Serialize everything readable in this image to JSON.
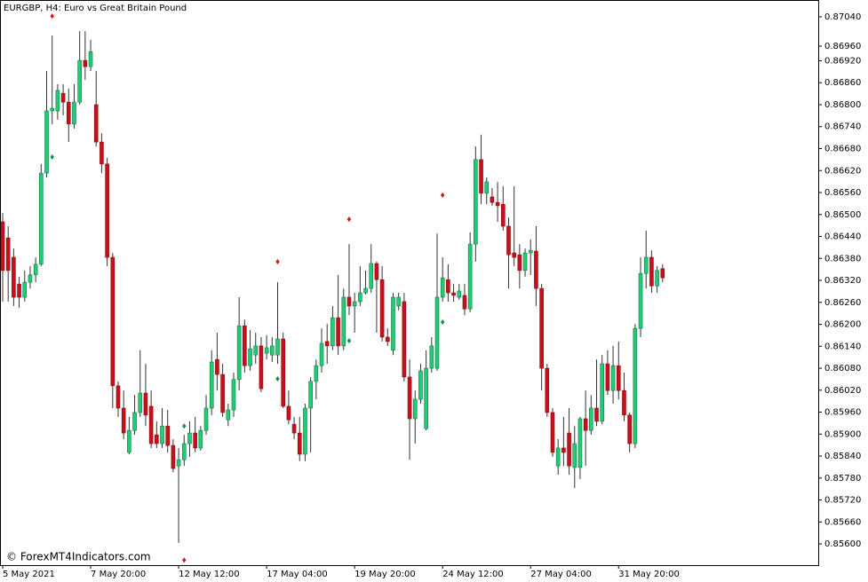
{
  "chart_data": {
    "type": "candlestick",
    "title": "EURGBP, H4:  Euro vs Great Britain Pound",
    "watermark": "© ForexMT4Indicators.com",
    "categories": [
      "5 May 2021",
      null,
      null,
      null,
      null,
      null,
      null,
      null,
      null,
      null,
      null,
      null,
      null,
      null,
      null,
      null,
      "7 May 20:00",
      null,
      null,
      null,
      null,
      null,
      null,
      null,
      null,
      null,
      null,
      null,
      null,
      null,
      null,
      null,
      "12 May 12:00",
      null,
      null,
      null,
      null,
      null,
      null,
      null,
      null,
      null,
      null,
      null,
      null,
      null,
      null,
      null,
      "17 May 04:00",
      null,
      null,
      null,
      null,
      null,
      null,
      null,
      null,
      null,
      null,
      null,
      null,
      null,
      null,
      null,
      "19 May 20:00",
      null,
      null,
      null,
      null,
      null,
      null,
      null,
      null,
      null,
      null,
      null,
      null,
      null,
      null,
      null,
      "24 May 12:00",
      null,
      null,
      null,
      null,
      null,
      null,
      null,
      null,
      null,
      null,
      null,
      null,
      null,
      null,
      null,
      "27 May 04:00",
      null,
      null,
      null,
      null,
      null,
      null,
      null,
      null,
      null,
      null,
      null,
      null,
      null,
      null,
      null,
      "31 May 20:00",
      null,
      null,
      null,
      null,
      null,
      null,
      null,
      null
    ],
    "open": [
      0.8648,
      0.86436,
      0.86383,
      0.8631,
      0.86274,
      0.86315,
      0.86335,
      0.86364,
      0.86613,
      0.86783,
      0.86783,
      0.86831,
      0.86807,
      0.86747,
      0.86807,
      0.86921,
      0.86904,
      0.868,
      0.86698,
      0.86638,
      0.86383,
      0.86032,
      0.85971,
      0.8585,
      0.8591,
      0.85959,
      0.86012,
      0.85976,
      0.85898,
      0.85874,
      0.85922,
      0.85869,
      0.85813,
      0.8583,
      0.85874,
      0.85903,
      0.85862,
      0.8591,
      0.85971,
      0.86104,
      0.86063,
      0.85939,
      0.85966,
      0.86049,
      0.86196,
      0.86087,
      0.86116,
      0.86141,
      0.86121,
      0.86116,
      0.86116,
      0.8616,
      0.85976,
      0.85927,
      0.85903,
      0.85845,
      0.85971,
      0.86044,
      0.86087,
      0.86153,
      0.86141,
      0.86218,
      0.86141,
      0.86274,
      0.8625,
      0.86262,
      0.86286,
      0.86298,
      0.86366,
      0.86322,
      0.86165,
      0.86129,
      0.8625,
      0.86262,
      0.86056,
      0.85942,
      0.85995,
      0.85915,
      0.8608,
      0.8608,
      0.86274,
      0.86322,
      0.86286,
      0.86274,
      0.86279,
      0.86242,
      0.86419,
      0.8665,
      0.86558,
      0.86548,
      0.86533,
      0.86528,
      0.86468,
      0.86395,
      0.8639,
      0.86347,
      0.86395,
      0.864,
      0.86298,
      0.8608,
      0.85959,
      0.85813,
      0.85862,
      0.85903,
      0.85809,
      0.85809,
      0.85942,
      0.8591,
      0.85971,
      0.85935,
      0.86092,
      0.86019,
      0.86087,
      0.86019,
      0.85952,
      0.85874,
      0.86189,
      0.86339,
      0.86383,
      0.86305,
      0.86352
    ],
    "high": [
      0.86504,
      0.86468,
      0.86407,
      0.8633,
      0.86347,
      0.86359,
      0.86383,
      0.86638,
      0.86892,
      0.86989,
      0.86856,
      0.86856,
      0.86844,
      0.86856,
      0.87001,
      0.87001,
      0.86977,
      0.86892,
      0.86722,
      0.86655,
      0.86395,
      0.86044,
      0.86019,
      0.85947,
      0.86007,
      0.86129,
      0.86092,
      0.86019,
      0.85935,
      0.85971,
      0.85966,
      0.85886,
      0.85862,
      0.85898,
      0.85935,
      0.85947,
      0.85922,
      0.86007,
      0.86129,
      0.86177,
      0.86092,
      0.85983,
      0.86068,
      0.86274,
      0.86213,
      0.86184,
      0.86177,
      0.86165,
      0.8617,
      0.86165,
      0.86315,
      0.86177,
      0.86019,
      0.85947,
      0.85947,
      0.85983,
      0.86056,
      0.86104,
      0.86189,
      0.86201,
      0.8625,
      0.86335,
      0.86298,
      0.86419,
      0.86286,
      0.86359,
      0.86347,
      0.86419,
      0.86371,
      0.86359,
      0.86189,
      0.86286,
      0.86286,
      0.86286,
      0.86104,
      0.86019,
      0.86092,
      0.86129,
      0.86165,
      0.86448,
      0.86383,
      0.86364,
      0.8631,
      0.8631,
      0.8631,
      0.86451,
      0.86686,
      0.86718,
      0.86601,
      0.86572,
      0.86589,
      0.86577,
      0.86492,
      0.86577,
      0.86419,
      0.86407,
      0.86432,
      0.86468,
      0.8631,
      0.86092,
      0.85971,
      0.85886,
      0.85947,
      0.85971,
      0.85922,
      0.85947,
      0.86019,
      0.86007,
      0.86104,
      0.86116,
      0.86129,
      0.86141,
      0.86153,
      0.86068,
      0.85959,
      0.86201,
      0.86383,
      0.86456,
      0.86402,
      0.86359,
      0.86364
    ],
    "low": [
      0.86262,
      0.86262,
      0.8625,
      0.86245,
      0.86262,
      0.86298,
      0.86315,
      0.86359,
      0.86601,
      0.86747,
      0.86759,
      0.86771,
      0.86698,
      0.86735,
      0.868,
      0.86868,
      0.86892,
      0.86686,
      0.86613,
      0.86359,
      0.85971,
      0.85947,
      0.85886,
      0.85845,
      0.85898,
      0.85947,
      0.85922,
      0.85862,
      0.85862,
      0.85862,
      0.8585,
      0.85796,
      0.85603,
      0.85813,
      0.85838,
      0.8585,
      0.85855,
      0.85898,
      0.85952,
      0.86019,
      0.85947,
      0.85922,
      0.85947,
      0.86019,
      0.86068,
      0.86073,
      0.86092,
      0.86015,
      0.86104,
      0.86097,
      0.86092,
      0.85971,
      0.85927,
      0.85886,
      0.85826,
      0.85826,
      0.8585,
      0.85995,
      0.86068,
      0.86092,
      0.86129,
      0.86116,
      0.86129,
      0.86225,
      0.86177,
      0.8625,
      0.86281,
      0.86286,
      0.86177,
      0.86153,
      0.86141,
      0.86116,
      0.86238,
      0.86044,
      0.8583,
      0.85874,
      0.85983,
      0.8591,
      0.86068,
      0.86073,
      0.86262,
      0.86262,
      0.86262,
      0.86267,
      0.86225,
      0.86233,
      0.86371,
      0.86528,
      0.86528,
      0.86524,
      0.8648,
      0.86456,
      0.86298,
      0.86359,
      0.86298,
      0.8633,
      0.86335,
      0.8625,
      0.86019,
      0.85947,
      0.85838,
      0.85789,
      0.85813,
      0.85789,
      0.85753,
      0.85777,
      0.85813,
      0.85898,
      0.85922,
      0.85927,
      0.86007,
      0.85983,
      0.85995,
      0.85935,
      0.8585,
      0.85862,
      0.86165,
      0.86298,
      0.86286,
      0.86286,
      0.86315
    ],
    "close": [
      0.86347,
      0.86347,
      0.86274,
      0.86274,
      0.86315,
      0.86335,
      0.86364,
      0.86613,
      0.86783,
      0.8679,
      0.86839,
      0.86807,
      0.86747,
      0.86807,
      0.86921,
      0.86904,
      0.86945,
      0.86698,
      0.86638,
      0.86383,
      0.86032,
      0.85971,
      0.85903,
      0.8591,
      0.85959,
      0.86012,
      0.85952,
      0.85874,
      0.85874,
      0.85922,
      0.85869,
      0.85806,
      0.8583,
      0.85874,
      0.85903,
      0.85862,
      0.8591,
      0.85971,
      0.86097,
      0.86063,
      0.85959,
      0.85966,
      0.86049,
      0.86196,
      0.86087,
      0.86133,
      0.86141,
      0.86024,
      0.86136,
      0.86141,
      0.8616,
      0.85976,
      0.85939,
      0.85903,
      0.85845,
      0.85971,
      0.86044,
      0.86087,
      0.86148,
      0.86141,
      0.86218,
      0.86141,
      0.86274,
      0.8625,
      0.86262,
      0.86286,
      0.86298,
      0.86366,
      0.86322,
      0.86165,
      0.86153,
      0.86274,
      0.86274,
      0.86056,
      0.85942,
      0.85995,
      0.86073,
      0.8608,
      0.86141,
      0.86274,
      0.86327,
      0.86286,
      0.86279,
      0.86291,
      0.86242,
      0.86419,
      0.8665,
      0.86558,
      0.86589,
      0.86533,
      0.86524,
      0.86468,
      0.8639,
      0.86383,
      0.86347,
      0.86395,
      0.86402,
      0.86298,
      0.8608,
      0.85959,
      0.8585,
      0.85862,
      0.8585,
      0.85813,
      0.85874,
      0.85942,
      0.8591,
      0.85971,
      0.85935,
      0.86092,
      0.86019,
      0.86087,
      0.86019,
      0.85952,
      0.85874,
      0.86189,
      0.86339,
      0.86383,
      0.86305,
      0.86347,
      0.86327
    ],
    "up_color": "#22cc77",
    "down_color": "#c8101a",
    "wick_color": "#333333",
    "ylim": [
      0.85542,
      0.87086
    ],
    "yticks": [
      {
        "value": 0.8704,
        "label": "0.87040"
      },
      {
        "value": 0.8696,
        "label": "0.86960"
      },
      {
        "value": 0.8692,
        "label": "0.86920"
      },
      {
        "value": 0.8686,
        "label": "0.86860"
      },
      {
        "value": 0.868,
        "label": "0.86800"
      },
      {
        "value": 0.8674,
        "label": "0.86740"
      },
      {
        "value": 0.8668,
        "label": "0.86680"
      },
      {
        "value": 0.8662,
        "label": "0.86620"
      },
      {
        "value": 0.8656,
        "label": "0.86560"
      },
      {
        "value": 0.865,
        "label": "0.86500"
      },
      {
        "value": 0.8644,
        "label": "0.86440"
      },
      {
        "value": 0.8638,
        "label": "0.86380"
      },
      {
        "value": 0.8632,
        "label": "0.86320"
      },
      {
        "value": 0.8626,
        "label": "0.86260"
      },
      {
        "value": 0.862,
        "label": "0.86200"
      },
      {
        "value": 0.8614,
        "label": "0.86140"
      },
      {
        "value": 0.8608,
        "label": "0.86080"
      },
      {
        "value": 0.8602,
        "label": "0.86020"
      },
      {
        "value": 0.8596,
        "label": "0.85960"
      },
      {
        "value": 0.859,
        "label": "0.85900"
      },
      {
        "value": 0.8584,
        "label": "0.85840"
      },
      {
        "value": 0.8578,
        "label": "0.85780"
      },
      {
        "value": 0.8572,
        "label": "0.85720"
      },
      {
        "value": 0.8566,
        "label": "0.85660"
      },
      {
        "value": 0.856,
        "label": "0.85600"
      }
    ],
    "markers": [
      {
        "i": 9,
        "value": 0.87042,
        "color": "#e01010"
      },
      {
        "i": 9,
        "value": 0.86657,
        "color": "#109040"
      },
      {
        "i": 33,
        "value": 0.85556,
        "color": "#e01010"
      },
      {
        "i": 33,
        "value": 0.85922,
        "color": "#109040"
      },
      {
        "i": 50,
        "value": 0.86371,
        "color": "#e01010"
      },
      {
        "i": 50,
        "value": 0.86051,
        "color": "#109040"
      },
      {
        "i": 63,
        "value": 0.86487,
        "color": "#e01010"
      },
      {
        "i": 63,
        "value": 0.86155,
        "color": "#109040"
      },
      {
        "i": 80,
        "value": 0.86553,
        "color": "#e01010"
      },
      {
        "i": 80,
        "value": 0.86206,
        "color": "#109040"
      }
    ]
  }
}
